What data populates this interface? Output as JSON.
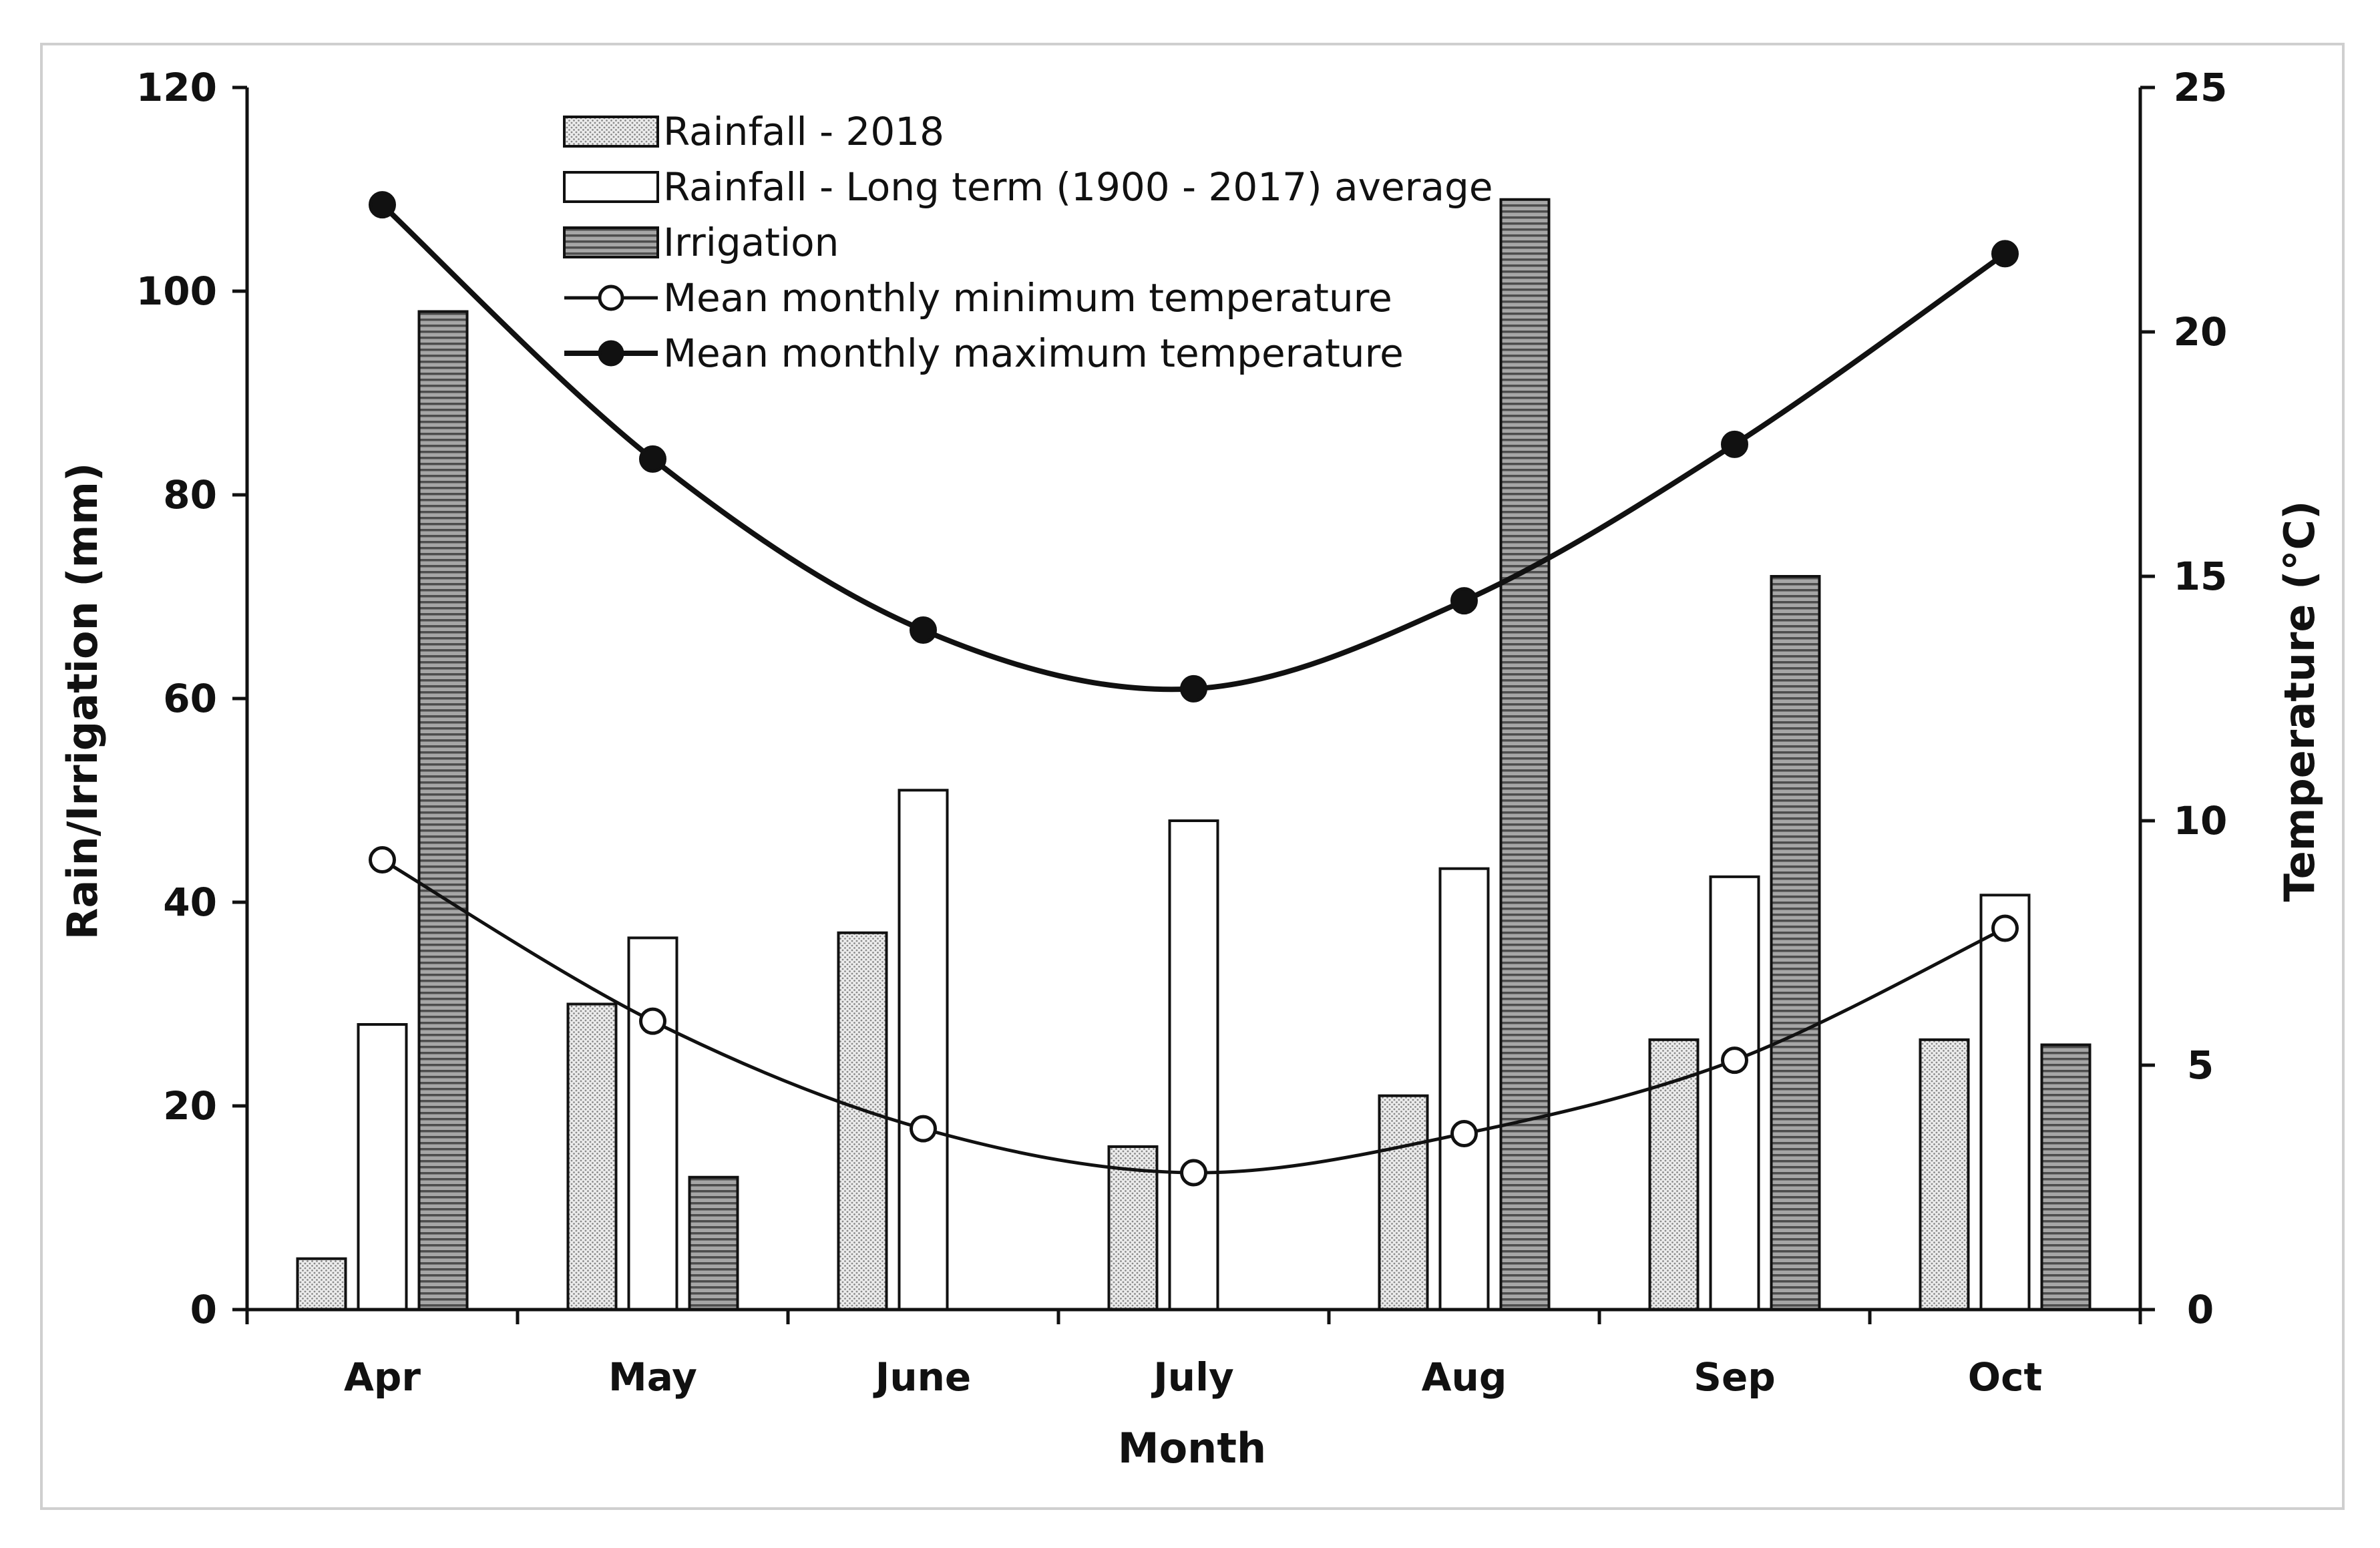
{
  "chart_data": {
    "type": "bar",
    "title": "",
    "xlabel": "Month",
    "ylabel": "Rain/Irrigation (mm)",
    "y2label": "Temperature (°C)",
    "categories": [
      "Apr",
      "May",
      "June",
      "July",
      "Aug",
      "Sep",
      "Oct"
    ],
    "ylim": [
      0,
      120
    ],
    "yticks": [
      "0",
      "20",
      "40",
      "60",
      "80",
      "100",
      "120"
    ],
    "y2lim": [
      0,
      25
    ],
    "y2ticks": [
      "0",
      "5",
      "10",
      "15",
      "20",
      "25"
    ],
    "grid": false,
    "legend_position": "top-center",
    "bar_series": [
      {
        "name": "Rainfall - 2018",
        "values": [
          5,
          30,
          37,
          16,
          21,
          26.5,
          26.5
        ],
        "pattern": "dotted",
        "color": "#d9d9d9"
      },
      {
        "name": "Rainfall - Long term (1900 - 2017) average",
        "values": [
          28,
          36.5,
          51,
          48,
          43.3,
          42.5,
          40.7
        ],
        "pattern": "solid",
        "color": "#ffffff"
      },
      {
        "name": "Irrigation",
        "values": [
          98,
          13,
          null,
          null,
          109,
          72,
          26
        ],
        "pattern": "horizontal-lines",
        "color": "#808080"
      }
    ],
    "line_series": [
      {
        "name": "Mean monthly minimum temperature",
        "axis": "right",
        "values": [
          9.2,
          5.9,
          3.7,
          2.8,
          3.6,
          5.1,
          7.8
        ],
        "marker": "open-circle",
        "color": "#111111"
      },
      {
        "name": "Mean monthly maximum temperature",
        "axis": "right",
        "values": [
          22.6,
          17.4,
          13.9,
          12.7,
          14.5,
          17.7,
          21.6
        ],
        "marker": "filled-circle",
        "color": "#111111"
      }
    ]
  }
}
